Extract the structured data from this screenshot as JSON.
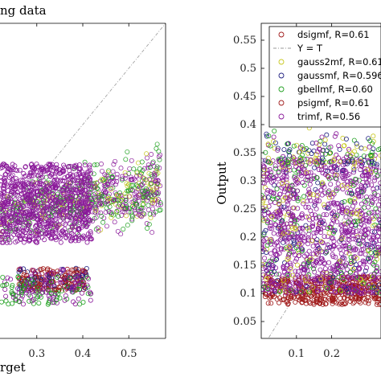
{
  "chart_data": [
    {
      "type": "scatter",
      "title": "ng data",
      "xlabel": "rget",
      "ylabel": "",
      "xlim": [
        0.22,
        0.58
      ],
      "ylim": [
        0.02,
        0.58
      ],
      "x_ticks": [
        "0.3",
        "0.4",
        "0.5"
      ],
      "x_tick_values": [
        0.3,
        0.4,
        0.5
      ],
      "y_ticks": [],
      "grid": false,
      "reference_line": "Y = T",
      "series": [
        {
          "name": "dsigmf",
          "color": "#a01a1a"
        },
        {
          "name": "gauss2mf",
          "color": "#c8c820"
        },
        {
          "name": "gaussmf",
          "color": "#202080"
        },
        {
          "name": "gbellmf",
          "color": "#20a020"
        },
        {
          "name": "psigmf",
          "color": "#a01a1a"
        },
        {
          "name": "trimf",
          "color": "#8a1a9a"
        }
      ]
    },
    {
      "type": "scatter",
      "title": "",
      "xlabel": "",
      "ylabel": "Output",
      "xlim": [
        0.0,
        0.34
      ],
      "ylim": [
        0.02,
        0.58
      ],
      "x_ticks": [
        "0.1",
        "0.2"
      ],
      "x_tick_values": [
        0.1,
        0.2
      ],
      "y_ticks": [
        "0.05",
        "0.1",
        "0.15",
        "0.2",
        "0.25",
        "0.3",
        "0.35",
        "0.4",
        "0.45",
        "0.5",
        "0.55"
      ],
      "y_tick_values": [
        0.05,
        0.1,
        0.15,
        0.2,
        0.25,
        0.3,
        0.35,
        0.4,
        0.45,
        0.5,
        0.55
      ],
      "grid": false,
      "legend_position": "top-right",
      "legend": [
        {
          "label": "dsigmf, R=0.61",
          "marker": "circle",
          "color": "#a01a1a"
        },
        {
          "label": "Y = T",
          "marker": "dashdot",
          "color": "#9a9a9a"
        },
        {
          "label": "gauss2mf, R=0.61",
          "marker": "circle",
          "color": "#c8c820"
        },
        {
          "label": "gaussmf, R=0.596",
          "marker": "circle",
          "color": "#202080"
        },
        {
          "label": "gbellmf, R=0.60",
          "marker": "circle",
          "color": "#20a020"
        },
        {
          "label": "psigmf, R=0.61",
          "marker": "circle",
          "color": "#a01a1a"
        },
        {
          "label": "trimf, R=0.56",
          "marker": "circle",
          "color": "#8a1a9a"
        }
      ],
      "series": [
        {
          "name": "dsigmf",
          "R": 0.61,
          "color": "#a01a1a"
        },
        {
          "name": "gauss2mf",
          "R": 0.61,
          "color": "#c8c820"
        },
        {
          "name": "gaussmf",
          "R": 0.596,
          "color": "#202080"
        },
        {
          "name": "gbellmf",
          "R": 0.6,
          "color": "#20a020"
        },
        {
          "name": "psigmf",
          "R": 0.61,
          "color": "#a01a1a"
        },
        {
          "name": "trimf",
          "R": 0.56,
          "color": "#8a1a9a"
        }
      ]
    }
  ]
}
